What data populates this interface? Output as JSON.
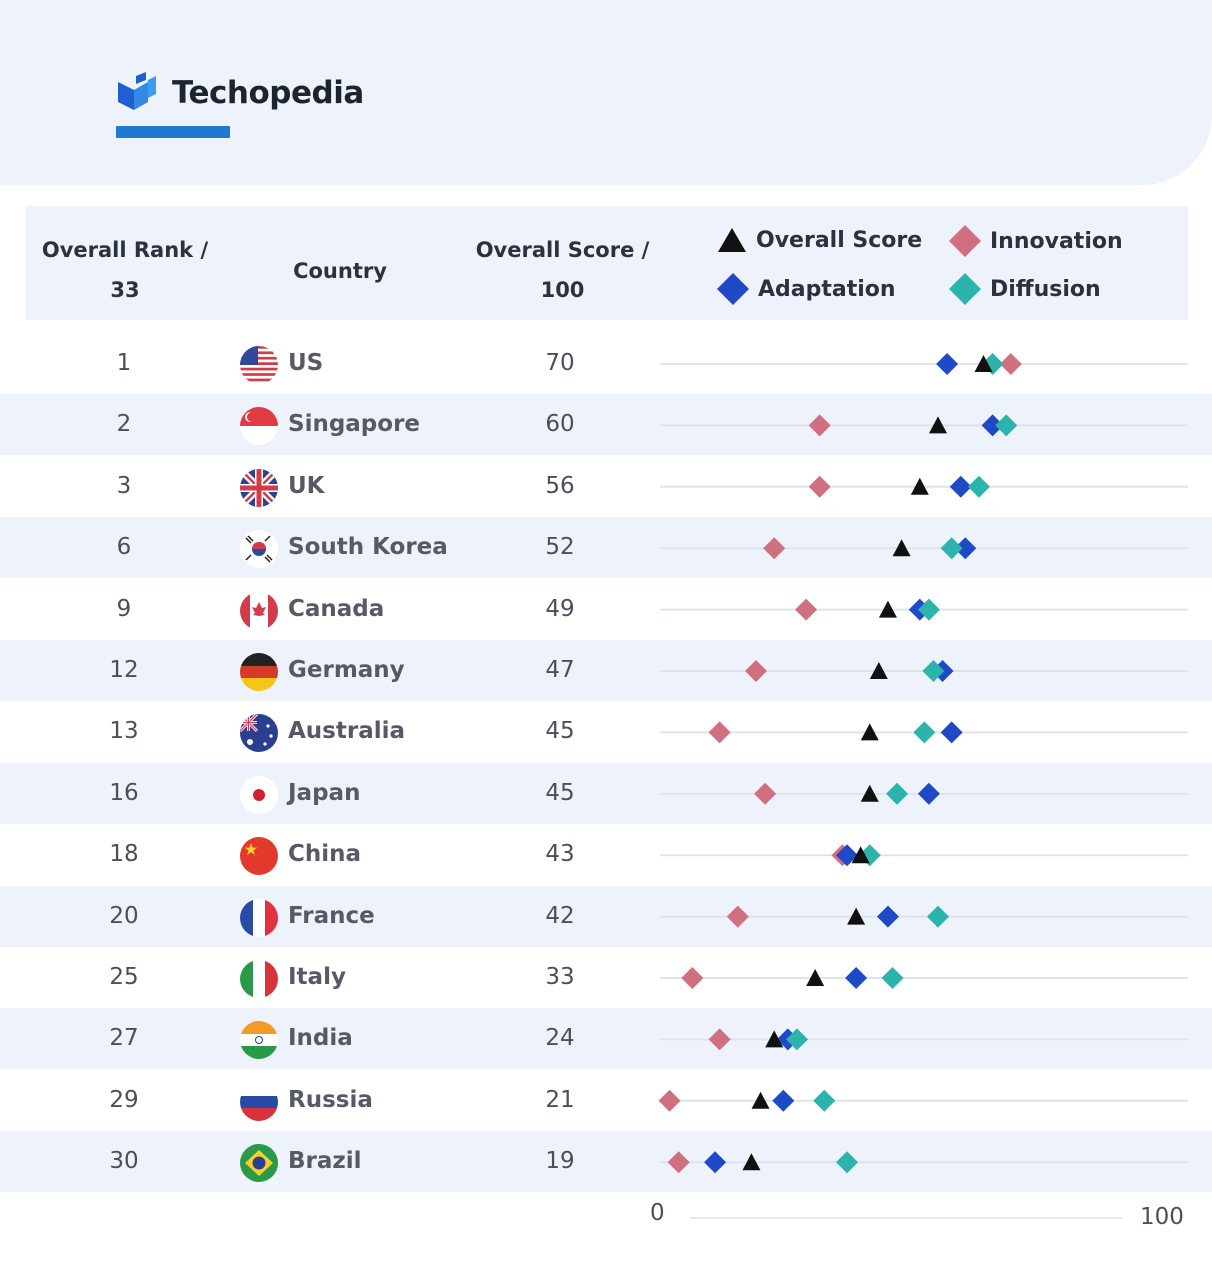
{
  "brand": {
    "name": "Techopedia"
  },
  "header": {
    "rank_line1": "Overall Rank /",
    "rank_line2": "33",
    "country": "Country",
    "score_line1": "Overall Score /",
    "score_line2": "100"
  },
  "legend": {
    "overall": "Overall Score",
    "innovation": "Innovation",
    "adaptation": "Adaptation",
    "diffusion": "Diffusion"
  },
  "colors": {
    "overall": "#111111",
    "innovation": "#d06f7f",
    "adaptation": "#1f49c7",
    "diffusion": "#2bb3ac",
    "brand": "#1f78d1",
    "row_alt": "#eef2fa"
  },
  "axis": {
    "min_label": "0",
    "max_label": "100"
  },
  "rows": [
    {
      "rank": "1",
      "country": "US",
      "score": "70",
      "flag": "us-flag"
    },
    {
      "rank": "2",
      "country": "Singapore",
      "score": "60",
      "flag": "singapore-flag"
    },
    {
      "rank": "3",
      "country": "UK",
      "score": "56",
      "flag": "uk-flag"
    },
    {
      "rank": "6",
      "country": "South Korea",
      "score": "52",
      "flag": "south-korea-flag"
    },
    {
      "rank": "9",
      "country": "Canada",
      "score": "49",
      "flag": "canada-flag"
    },
    {
      "rank": "12",
      "country": "Germany",
      "score": "47",
      "flag": "germany-flag"
    },
    {
      "rank": "13",
      "country": "Australia",
      "score": "45",
      "flag": "australia-flag"
    },
    {
      "rank": "16",
      "country": "Japan",
      "score": "45",
      "flag": "japan-flag"
    },
    {
      "rank": "18",
      "country": "China",
      "score": "43",
      "flag": "china-flag"
    },
    {
      "rank": "20",
      "country": "France",
      "score": "42",
      "flag": "france-flag"
    },
    {
      "rank": "25",
      "country": "Italy",
      "score": "33",
      "flag": "italy-flag"
    },
    {
      "rank": "27",
      "country": "India",
      "score": "24",
      "flag": "india-flag"
    },
    {
      "rank": "29",
      "country": "Russia",
      "score": "21",
      "flag": "russia-flag"
    },
    {
      "rank": "30",
      "country": "Brazil",
      "score": "19",
      "flag": "brazil-flag"
    }
  ],
  "chart_data": {
    "type": "scatter",
    "subtype": "dot-plot",
    "categories": [
      "US",
      "Singapore",
      "UK",
      "South Korea",
      "Canada",
      "Germany",
      "Australia",
      "Japan",
      "China",
      "France",
      "Italy",
      "India",
      "Russia",
      "Brazil"
    ],
    "xlim": [
      0,
      100
    ],
    "grid": "horizontal row guides",
    "legend_position": "top-right",
    "series": [
      {
        "name": "Overall Score",
        "marker": "triangle",
        "color": "#111111",
        "values": [
          70,
          60,
          56,
          52,
          49,
          47,
          45,
          45,
          43,
          42,
          33,
          24,
          21,
          19
        ]
      },
      {
        "name": "Innovation",
        "marker": "diamond",
        "color": "#d06f7f",
        "values": [
          76,
          34,
          34,
          24,
          31,
          20,
          12,
          22,
          39,
          16,
          6,
          12,
          1,
          3
        ]
      },
      {
        "name": "Adaptation",
        "marker": "diamond",
        "color": "#1f49c7",
        "values": [
          62,
          72,
          65,
          66,
          56,
          61,
          63,
          58,
          40,
          49,
          42,
          27,
          26,
          11
        ]
      },
      {
        "name": "Diffusion",
        "marker": "diamond",
        "color": "#2bb3ac",
        "values": [
          72,
          75,
          69,
          63,
          58,
          59,
          57,
          51,
          45,
          60,
          50,
          29,
          35,
          40
        ]
      }
    ]
  }
}
